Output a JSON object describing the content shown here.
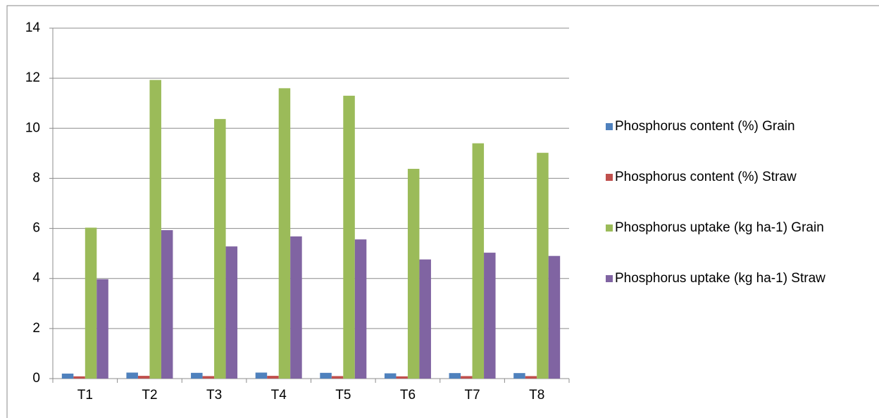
{
  "chart_data": {
    "type": "bar",
    "categories": [
      "T1",
      "T2",
      "T3",
      "T4",
      "T5",
      "T6",
      "T7",
      "T8"
    ],
    "series": [
      {
        "name": "Phosphorus content (%) Grain",
        "color": "#4f81bd",
        "values": [
          0.2,
          0.24,
          0.23,
          0.24,
          0.23,
          0.21,
          0.22,
          0.22
        ]
      },
      {
        "name": "Phosphorus content (%) Straw",
        "color": "#c0504d",
        "values": [
          0.09,
          0.11,
          0.1,
          0.11,
          0.1,
          0.09,
          0.1,
          0.1
        ]
      },
      {
        "name": "Phosphorus uptake (kg ha-1) Grain",
        "color": "#9bbb59",
        "values": [
          6.03,
          11.93,
          10.37,
          11.6,
          11.3,
          8.38,
          9.4,
          9.02
        ]
      },
      {
        "name": "Phosphorus uptake (kg ha-1) Straw",
        "color": "#8064a2",
        "values": [
          3.97,
          5.93,
          5.28,
          5.68,
          5.56,
          4.76,
          5.03,
          4.9
        ]
      }
    ],
    "ylim": [
      0,
      14
    ],
    "yticks": [
      0,
      2,
      4,
      6,
      8,
      10,
      12,
      14
    ],
    "grid": true,
    "legend": "right"
  }
}
